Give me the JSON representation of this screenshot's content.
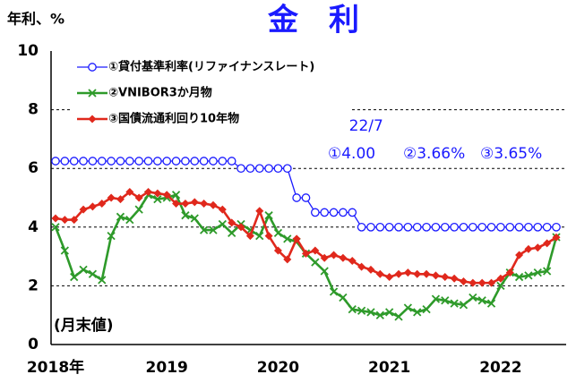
{
  "chart_data": {
    "type": "line",
    "title": "金　利",
    "y_label": "年利、%",
    "note": "(月末値)",
    "annotations": [
      "2022/7",
      "①4.00",
      "②3.66%",
      "③3.65%"
    ],
    "categories": [
      "2018年",
      null,
      null,
      null,
      null,
      null,
      null,
      null,
      null,
      null,
      null,
      null,
      "2019",
      null,
      null,
      null,
      null,
      null,
      null,
      null,
      null,
      null,
      null,
      null,
      "2020",
      null,
      null,
      null,
      null,
      null,
      null,
      null,
      null,
      null,
      null,
      null,
      "2021",
      null,
      null,
      null,
      null,
      null,
      null,
      null,
      null,
      null,
      null,
      null,
      "2022",
      null,
      null,
      null,
      null,
      null,
      null
    ],
    "ylim": [
      0,
      10
    ],
    "yticks": [
      0,
      2,
      4,
      6,
      8,
      10
    ],
    "grid": true,
    "series": [
      {
        "name": "①貸付基準利率(リファイナンスレート)",
        "color": "#1a1aff",
        "marker": "circle",
        "values": [
          6.25,
          6.25,
          6.25,
          6.25,
          6.25,
          6.25,
          6.25,
          6.25,
          6.25,
          6.25,
          6.25,
          6.25,
          6.25,
          6.25,
          6.25,
          6.25,
          6.25,
          6.25,
          6.25,
          6.25,
          6.0,
          6.0,
          6.0,
          6.0,
          6.0,
          6.0,
          5.0,
          5.0,
          4.5,
          4.5,
          4.5,
          4.5,
          4.5,
          4.0,
          4.0,
          4.0,
          4.0,
          4.0,
          4.0,
          4.0,
          4.0,
          4.0,
          4.0,
          4.0,
          4.0,
          4.0,
          4.0,
          4.0,
          4.0,
          4.0,
          4.0,
          4.0,
          4.0,
          4.0,
          4.0
        ]
      },
      {
        "name": "②VNIBOR3か月物",
        "color": "#2e9a2a",
        "marker": "x",
        "values": [
          4.0,
          3.2,
          2.3,
          2.55,
          2.4,
          2.2,
          3.7,
          4.35,
          4.25,
          4.6,
          5.1,
          4.95,
          5.0,
          5.1,
          4.4,
          4.3,
          3.9,
          3.9,
          4.1,
          3.8,
          4.1,
          3.9,
          3.7,
          4.4,
          3.8,
          3.6,
          3.5,
          3.1,
          2.8,
          2.5,
          1.8,
          1.6,
          1.2,
          1.15,
          1.1,
          1.0,
          1.1,
          0.95,
          1.25,
          1.1,
          1.2,
          1.55,
          1.5,
          1.4,
          1.35,
          1.6,
          1.5,
          1.4,
          2.0,
          2.45,
          2.3,
          2.35,
          2.45,
          2.5,
          3.66
        ]
      },
      {
        "name": "③国債流通利回り10年物",
        "color": "#e0281c",
        "marker": "diamond",
        "values": [
          4.3,
          4.25,
          4.25,
          4.6,
          4.7,
          4.8,
          5.0,
          4.95,
          5.2,
          5.0,
          5.2,
          5.15,
          5.1,
          4.8,
          4.8,
          4.85,
          4.8,
          4.75,
          4.6,
          4.15,
          4.0,
          3.7,
          4.55,
          3.7,
          3.2,
          2.9,
          3.6,
          3.1,
          3.2,
          2.95,
          3.05,
          2.95,
          2.85,
          2.65,
          2.55,
          2.4,
          2.3,
          2.4,
          2.45,
          2.4,
          2.4,
          2.35,
          2.3,
          2.25,
          2.15,
          2.1,
          2.1,
          2.1,
          2.25,
          2.45,
          3.05,
          3.25,
          3.3,
          3.45,
          3.65
        ]
      }
    ]
  }
}
